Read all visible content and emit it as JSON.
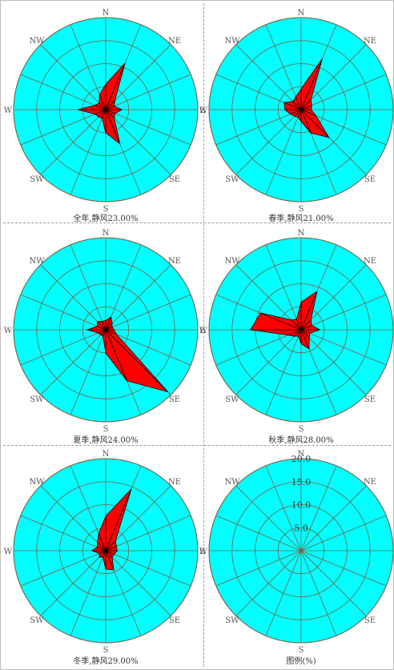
{
  "colors": {
    "disk": "#00ffff",
    "grid": "#7a6040",
    "rose_fill": "#ff0000",
    "rose_outline": "#000000",
    "spoke_fill": "#ffffff"
  },
  "direction_labels": [
    "N",
    "NE",
    "E",
    "SE",
    "S",
    "SW",
    "W",
    "NW"
  ],
  "chart_data": [
    {
      "type": "wind-rose",
      "caption": "全年,静风23.00%",
      "scale_max": 20,
      "rings": [
        5,
        10,
        15,
        20
      ],
      "directions": [
        "N",
        "NNE",
        "NE",
        "ENE",
        "E",
        "ESE",
        "SE",
        "SSE",
        "S",
        "SSW",
        "SW",
        "WSW",
        "W",
        "WNW",
        "NW",
        "NNW"
      ],
      "values": [
        5.5,
        11.0,
        2.8,
        2.0,
        3.5,
        2.2,
        2.6,
        8.0,
        5.0,
        2.0,
        2.2,
        2.5,
        6.0,
        2.5,
        2.0,
        3.5
      ]
    },
    {
      "type": "wind-rose",
      "caption": "春季,静风21.00%",
      "scale_max": 20,
      "rings": [
        5,
        10,
        15,
        20
      ],
      "directions": [
        "N",
        "NNE",
        "NE",
        "ENE",
        "E",
        "ESE",
        "SE",
        "SSE",
        "S",
        "SSW",
        "SW",
        "WSW",
        "W",
        "WNW",
        "NW",
        "NNW"
      ],
      "values": [
        4.5,
        12.0,
        3.0,
        2.5,
        2.2,
        3.5,
        8.5,
        5.5,
        2.5,
        1.8,
        2.0,
        2.5,
        3.5,
        4.0,
        2.5,
        3.0
      ]
    },
    {
      "type": "wind-rose",
      "caption": "夏季,静风24.00%",
      "scale_max": 20,
      "rings": [
        5,
        10,
        15,
        20
      ],
      "directions": [
        "N",
        "NNE",
        "NE",
        "ENE",
        "E",
        "ESE",
        "SE",
        "SSE",
        "S",
        "SSW",
        "SW",
        "WSW",
        "W",
        "WNW",
        "NW",
        "NNW"
      ],
      "values": [
        2.0,
        3.0,
        2.0,
        1.5,
        1.8,
        2.5,
        19.0,
        12.0,
        5.0,
        1.5,
        1.5,
        1.8,
        4.0,
        2.0,
        2.5,
        2.0
      ]
    },
    {
      "type": "wind-rose",
      "caption": "秋季,静风28.00%",
      "scale_max": 20,
      "rings": [
        5,
        10,
        15,
        20
      ],
      "directions": [
        "N",
        "NNE",
        "NE",
        "ENE",
        "E",
        "ESE",
        "SE",
        "SSE",
        "S",
        "SSW",
        "SW",
        "WSW",
        "W",
        "WNW",
        "NW",
        "NNW"
      ],
      "values": [
        6.0,
        9.0,
        3.0,
        2.5,
        4.0,
        2.0,
        2.5,
        4.5,
        3.0,
        1.5,
        2.0,
        3.0,
        11.0,
        9.5,
        3.0,
        2.5
      ]
    },
    {
      "type": "wind-rose",
      "caption": "冬季,静风29.00%",
      "scale_max": 20,
      "rings": [
        5,
        10,
        15,
        20
      ],
      "directions": [
        "N",
        "NNE",
        "NE",
        "ENE",
        "E",
        "ESE",
        "SE",
        "SSE",
        "S",
        "SSW",
        "SW",
        "WSW",
        "W",
        "WNW",
        "NW",
        "NNW"
      ],
      "values": [
        7.5,
        14.5,
        3.0,
        2.5,
        2.5,
        2.0,
        2.0,
        4.5,
        4.0,
        1.5,
        2.0,
        1.5,
        3.0,
        2.0,
        2.5,
        4.0
      ]
    },
    {
      "type": "legend",
      "caption": "图例(%)",
      "scale_max": 20,
      "rings": [
        5,
        10,
        15,
        20
      ],
      "ring_labels": [
        "5.0",
        "10.0",
        "15.0",
        "20.0"
      ]
    }
  ]
}
